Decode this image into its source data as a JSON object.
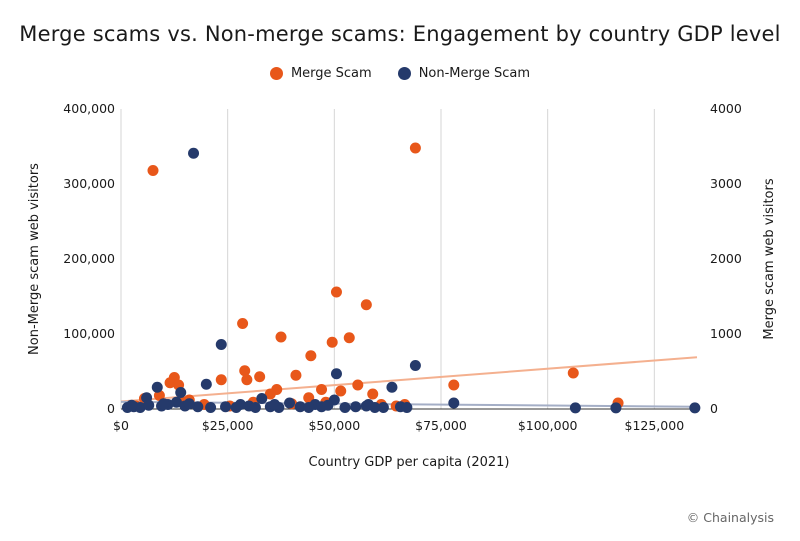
{
  "chart_data": {
    "type": "scatter",
    "title": "Merge scams vs. Non-merge scams: Engagement by country GDP level",
    "xlabel": "Country GDP per capita (2021)",
    "ylabel_left": "Non-Merge scam web visitors",
    "ylabel_right": "Merge scam web visitors",
    "xlim": [
      0,
      135000
    ],
    "ylim_left": [
      0,
      400000
    ],
    "ylim_right": [
      0,
      4000
    ],
    "x_ticks": [
      "$0",
      "$25,000",
      "$50,000",
      "$75,000",
      "$100,000",
      "$125,000"
    ],
    "y_ticks_left": [
      "0",
      "100,000",
      "200,000",
      "300,000",
      "400,000"
    ],
    "y_ticks_right": [
      "0",
      "1000",
      "2000",
      "3000",
      "4000"
    ],
    "grid": "vertical",
    "legend_position": "top-center",
    "series": [
      {
        "name": "Merge Scam",
        "color": "#e8571a",
        "axis": "right",
        "points": [
          [
            7500,
            3180
          ],
          [
            69000,
            3480
          ],
          [
            50500,
            1560
          ],
          [
            57500,
            1390
          ],
          [
            28500,
            1140
          ],
          [
            37500,
            960
          ],
          [
            53500,
            950
          ],
          [
            49500,
            890
          ],
          [
            44500,
            710
          ],
          [
            29000,
            510
          ],
          [
            32500,
            430
          ],
          [
            41000,
            450
          ],
          [
            12500,
            420
          ],
          [
            11500,
            350
          ],
          [
            13500,
            320
          ],
          [
            29500,
            390
          ],
          [
            23500,
            390
          ],
          [
            36500,
            260
          ],
          [
            55500,
            320
          ],
          [
            47000,
            260
          ],
          [
            51500,
            240
          ],
          [
            59000,
            200
          ],
          [
            9000,
            180
          ],
          [
            35000,
            200
          ],
          [
            44000,
            150
          ],
          [
            78000,
            320
          ],
          [
            106000,
            480
          ],
          [
            116500,
            80
          ],
          [
            5500,
            140
          ],
          [
            16000,
            120
          ],
          [
            64500,
            40
          ],
          [
            66500,
            60
          ],
          [
            3500,
            40
          ],
          [
            25500,
            40
          ],
          [
            19500,
            60
          ],
          [
            40000,
            70
          ],
          [
            31000,
            90
          ],
          [
            14500,
            90
          ],
          [
            48000,
            90
          ],
          [
            61000,
            60
          ]
        ],
        "trend": [
          [
            0,
            100
          ],
          [
            135000,
            690
          ]
        ]
      },
      {
        "name": "Non-Merge Scam",
        "color": "#253a6b",
        "axis": "left",
        "points": [
          [
            17000,
            341000
          ],
          [
            23500,
            86000
          ],
          [
            69000,
            58000
          ],
          [
            50500,
            47000
          ],
          [
            20000,
            33000
          ],
          [
            63500,
            29000
          ],
          [
            8500,
            29000
          ],
          [
            14000,
            22000
          ],
          [
            78000,
            8000
          ],
          [
            50000,
            12000
          ],
          [
            33000,
            14000
          ],
          [
            6000,
            15000
          ],
          [
            39500,
            8000
          ],
          [
            45500,
            6000
          ],
          [
            13000,
            9000
          ],
          [
            1500,
            2000
          ],
          [
            3000,
            3000
          ],
          [
            4500,
            2000
          ],
          [
            6500,
            5000
          ],
          [
            9500,
            4000
          ],
          [
            11000,
            6000
          ],
          [
            15000,
            4000
          ],
          [
            18000,
            3000
          ],
          [
            21000,
            2000
          ],
          [
            24500,
            3000
          ],
          [
            27000,
            2000
          ],
          [
            30000,
            4000
          ],
          [
            31500,
            2000
          ],
          [
            35000,
            3000
          ],
          [
            37000,
            2000
          ],
          [
            42000,
            3000
          ],
          [
            44000,
            2000
          ],
          [
            47000,
            3000
          ],
          [
            52500,
            2000
          ],
          [
            55000,
            3000
          ],
          [
            57500,
            4000
          ],
          [
            59500,
            2000
          ],
          [
            61500,
            2000
          ],
          [
            65500,
            3000
          ],
          [
            67000,
            2000
          ],
          [
            106500,
            1500
          ],
          [
            116000,
            1500
          ],
          [
            134500,
            1500
          ],
          [
            2500,
            5000
          ],
          [
            10000,
            7000
          ],
          [
            16000,
            7000
          ],
          [
            28000,
            6000
          ],
          [
            36000,
            6000
          ],
          [
            48500,
            5000
          ],
          [
            58000,
            6000
          ]
        ],
        "trend": [
          [
            0,
            9500
          ],
          [
            135000,
            3000
          ]
        ]
      }
    ],
    "credit": "© Chainalysis"
  }
}
